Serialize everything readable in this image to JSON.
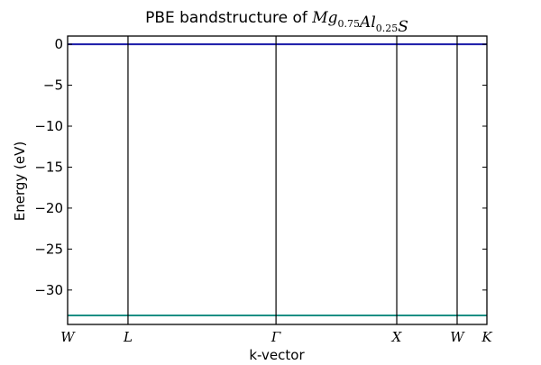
{
  "chart_data": {
    "type": "line",
    "title": {
      "prefix": "PBE bandstructure of ",
      "formula": [
        {
          "base": "Mg",
          "sub": "0.75"
        },
        {
          "base": "Al",
          "sub": "0.25"
        },
        {
          "base": "S",
          "sub": ""
        }
      ]
    },
    "xlabel": "k-vector",
    "ylabel": "Energy (eV)",
    "ylim": [
      -34.2,
      1.0
    ],
    "xlim": [
      0,
      100
    ],
    "yticks": [
      0,
      -5,
      -10,
      -15,
      -20,
      -25,
      -30
    ],
    "ytick_labels": [
      "0",
      "−5",
      "−10",
      "−15",
      "−20",
      "−25",
      "−30"
    ],
    "kpoints": [
      {
        "label": "W",
        "x": 0
      },
      {
        "label": "L",
        "x": 14.4
      },
      {
        "label": "Γ",
        "x": 49.7
      },
      {
        "label": "X",
        "x": 78.5
      },
      {
        "label": "W",
        "x": 92.9
      },
      {
        "label": "K",
        "x": 100
      }
    ],
    "series": [
      {
        "color": "#1a1aa8",
        "values": [
          0.0,
          0.0
        ]
      },
      {
        "color": "#1a8f84",
        "values": [
          -33.1,
          -33.1
        ]
      }
    ],
    "grid": false
  }
}
